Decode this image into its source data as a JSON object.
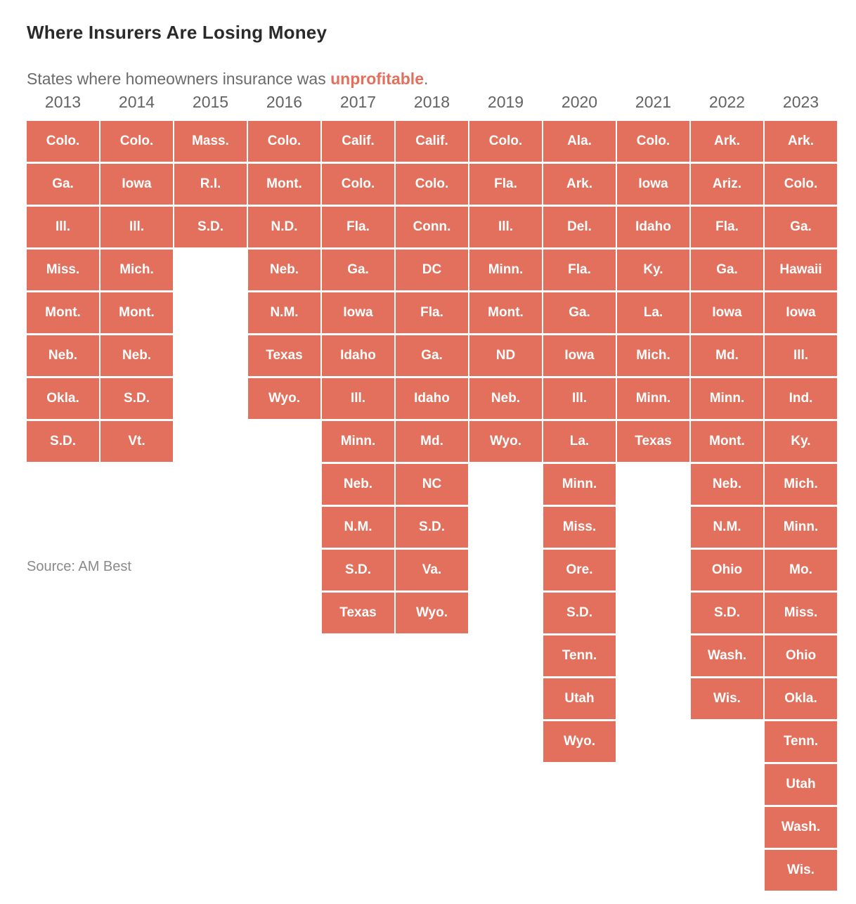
{
  "header": {
    "title": "Where Insurers Are Losing Money",
    "subtitle_prefix": "States where homeowners insurance was ",
    "subtitle_highlight": "unprofitable",
    "subtitle_suffix": "."
  },
  "footer": {
    "source": "Source: AM Best"
  },
  "colors": {
    "accent": "#e2705c",
    "cell_fill": "#e2705c",
    "cell_text": "#ffffff",
    "title_text": "#2a2a2a",
    "subtitle_text": "#6b6b6b",
    "year_text": "#636363",
    "source_text": "#8a8a8a"
  },
  "chart_data": {
    "type": "table",
    "title": "Where Insurers Are Losing Money",
    "subtitle": "States where homeowners insurance was unprofitable.",
    "source": "Source: AM Best",
    "legend_position": "none",
    "grid": "off",
    "columns": [
      {
        "year": "2013",
        "states": [
          "Colo.",
          "Ga.",
          "Ill.",
          "Miss.",
          "Mont.",
          "Neb.",
          "Okla.",
          "S.D."
        ]
      },
      {
        "year": "2014",
        "states": [
          "Colo.",
          "Iowa",
          "Ill.",
          "Mich.",
          "Mont.",
          "Neb.",
          "S.D.",
          "Vt."
        ]
      },
      {
        "year": "2015",
        "states": [
          "Mass.",
          "R.I.",
          "S.D."
        ]
      },
      {
        "year": "2016",
        "states": [
          "Colo.",
          "Mont.",
          "N.D.",
          "Neb.",
          "N.M.",
          "Texas",
          "Wyo."
        ]
      },
      {
        "year": "2017",
        "states": [
          "Calif.",
          "Colo.",
          "Fla.",
          "Ga.",
          "Iowa",
          "Idaho",
          "Ill.",
          "Minn.",
          "Neb.",
          "N.M.",
          "S.D.",
          "Texas"
        ]
      },
      {
        "year": "2018",
        "states": [
          "Calif.",
          "Colo.",
          "Conn.",
          "DC",
          "Fla.",
          "Ga.",
          "Idaho",
          "Md.",
          "NC",
          "S.D.",
          "Va.",
          "Wyo."
        ]
      },
      {
        "year": "2019",
        "states": [
          "Colo.",
          "Fla.",
          "Ill.",
          "Minn.",
          "Mont.",
          "ND",
          "Neb.",
          "Wyo."
        ]
      },
      {
        "year": "2020",
        "states": [
          "Ala.",
          "Ark.",
          "Del.",
          "Fla.",
          "Ga.",
          "Iowa",
          "Ill.",
          "La.",
          "Minn.",
          "Miss.",
          "Ore.",
          "S.D.",
          "Tenn.",
          "Utah",
          "Wyo."
        ]
      },
      {
        "year": "2021",
        "states": [
          "Colo.",
          "Iowa",
          "Idaho",
          "Ky.",
          "La.",
          "Mich.",
          "Minn.",
          "Texas"
        ]
      },
      {
        "year": "2022",
        "states": [
          "Ark.",
          "Ariz.",
          "Fla.",
          "Ga.",
          "Iowa",
          "Md.",
          "Minn.",
          "Mont.",
          "Neb.",
          "N.M.",
          "Ohio",
          "S.D.",
          "Wash.",
          "Wis."
        ]
      },
      {
        "year": "2023",
        "states": [
          "Ark.",
          "Colo.",
          "Ga.",
          "Hawaii",
          "Iowa",
          "Ill.",
          "Ind.",
          "Ky.",
          "Mich.",
          "Minn.",
          "Mo.",
          "Miss.",
          "Ohio",
          "Okla.",
          "Tenn.",
          "Utah",
          "Wash.",
          "Wis."
        ]
      }
    ]
  }
}
